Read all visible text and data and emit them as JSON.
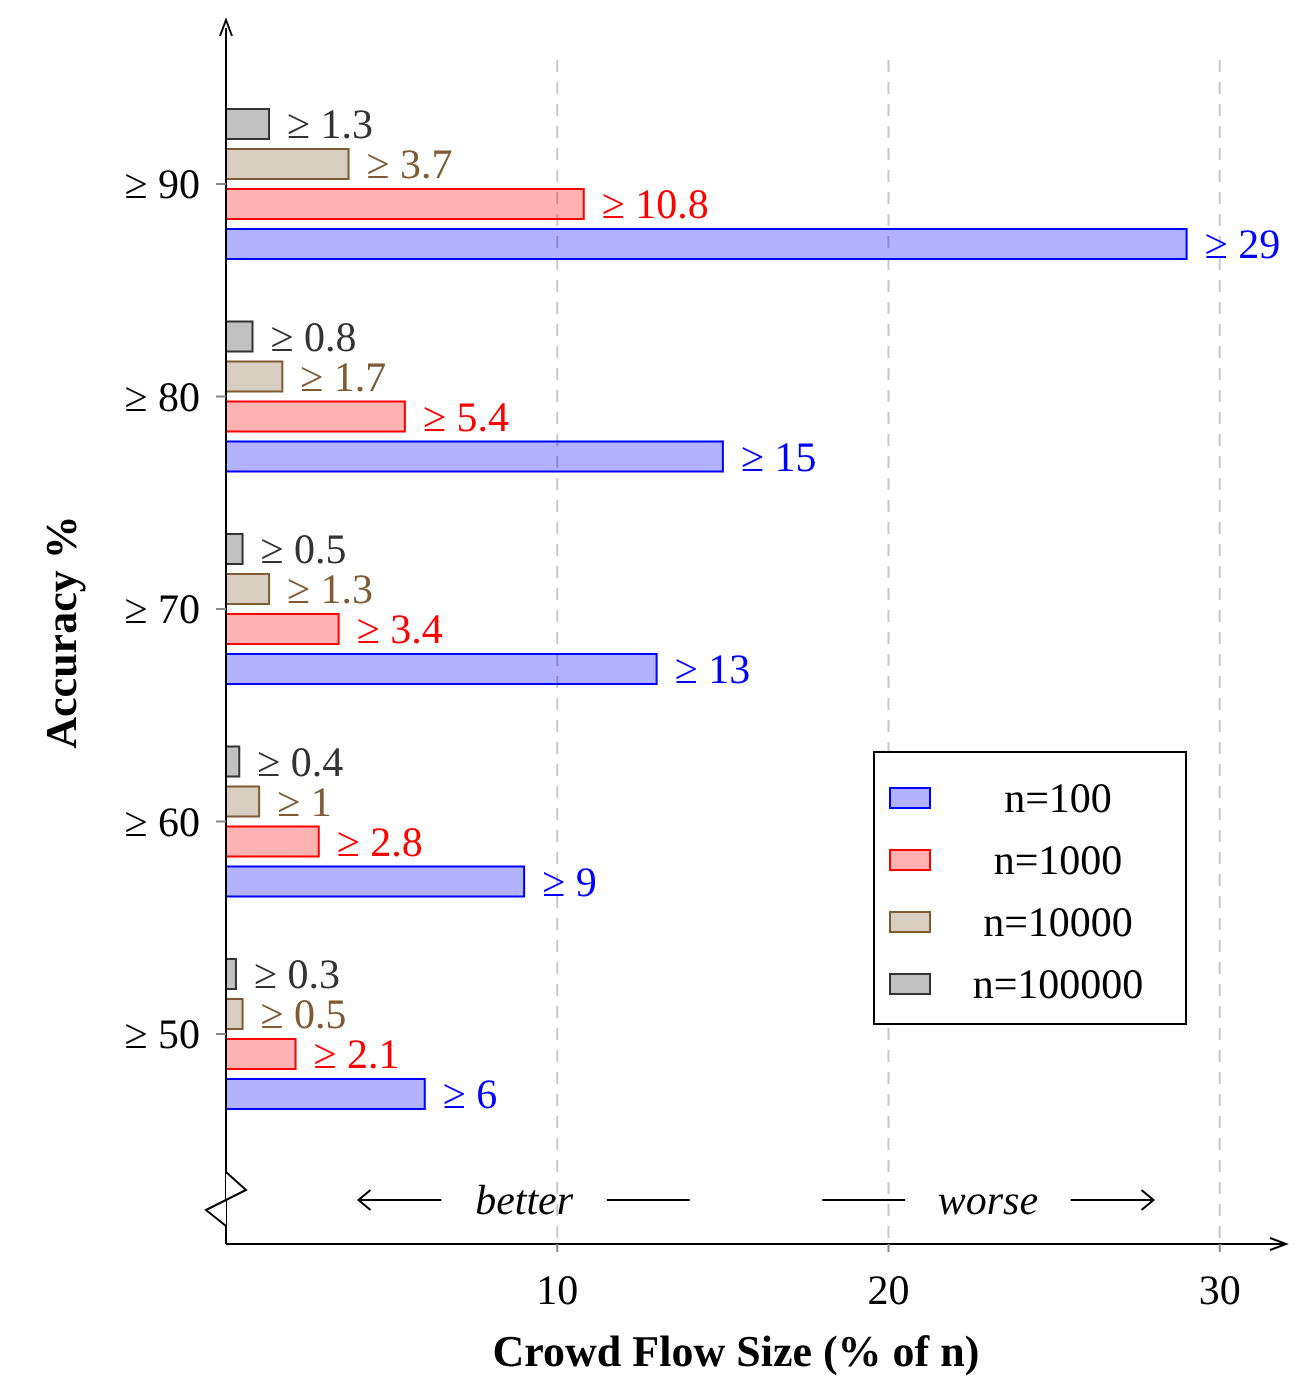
{
  "chart_data": {
    "type": "bar",
    "orientation": "horizontal",
    "categories": [
      "≥ 90",
      "≥ 80",
      "≥ 70",
      "≥ 60",
      "≥ 50"
    ],
    "series": [
      {
        "name": "n=100",
        "color": "#0000ff",
        "values": [
          29,
          15,
          13,
          9,
          6
        ],
        "value_labels": [
          "≥ 29",
          "≥ 15",
          "≥ 13",
          "≥ 9",
          "≥ 6"
        ]
      },
      {
        "name": "n=1000",
        "color": "#ff0000",
        "values": [
          10.8,
          5.4,
          3.4,
          2.8,
          2.1
        ],
        "value_labels": [
          "≥ 10.8",
          "≥ 5.4",
          "≥ 3.4",
          "≥ 2.8",
          "≥ 2.1"
        ]
      },
      {
        "name": "n=10000",
        "color": "#7f5a32",
        "values": [
          3.7,
          1.7,
          1.3,
          1,
          0.5
        ],
        "value_labels": [
          "≥ 3.7",
          "≥ 1.7",
          "≥ 1.3",
          "≥ 1",
          "≥ 0.5"
        ]
      },
      {
        "name": "n=100000",
        "color": "#333333",
        "values": [
          1.3,
          0.8,
          0.5,
          0.4,
          0.3
        ],
        "value_labels": [
          "≥ 1.3",
          "≥ 0.8",
          "≥ 0.5",
          "≥ 0.4",
          "≥ 0.3"
        ]
      }
    ],
    "xlim": [
      0,
      32
    ],
    "xticks": [
      10,
      20,
      30
    ],
    "xlabel": "Crowd Flow Size (% of n)",
    "ylabel": "Accuracy %",
    "annotations": [
      "better",
      "worse"
    ],
    "grid": "x",
    "legend": "bottom right"
  }
}
